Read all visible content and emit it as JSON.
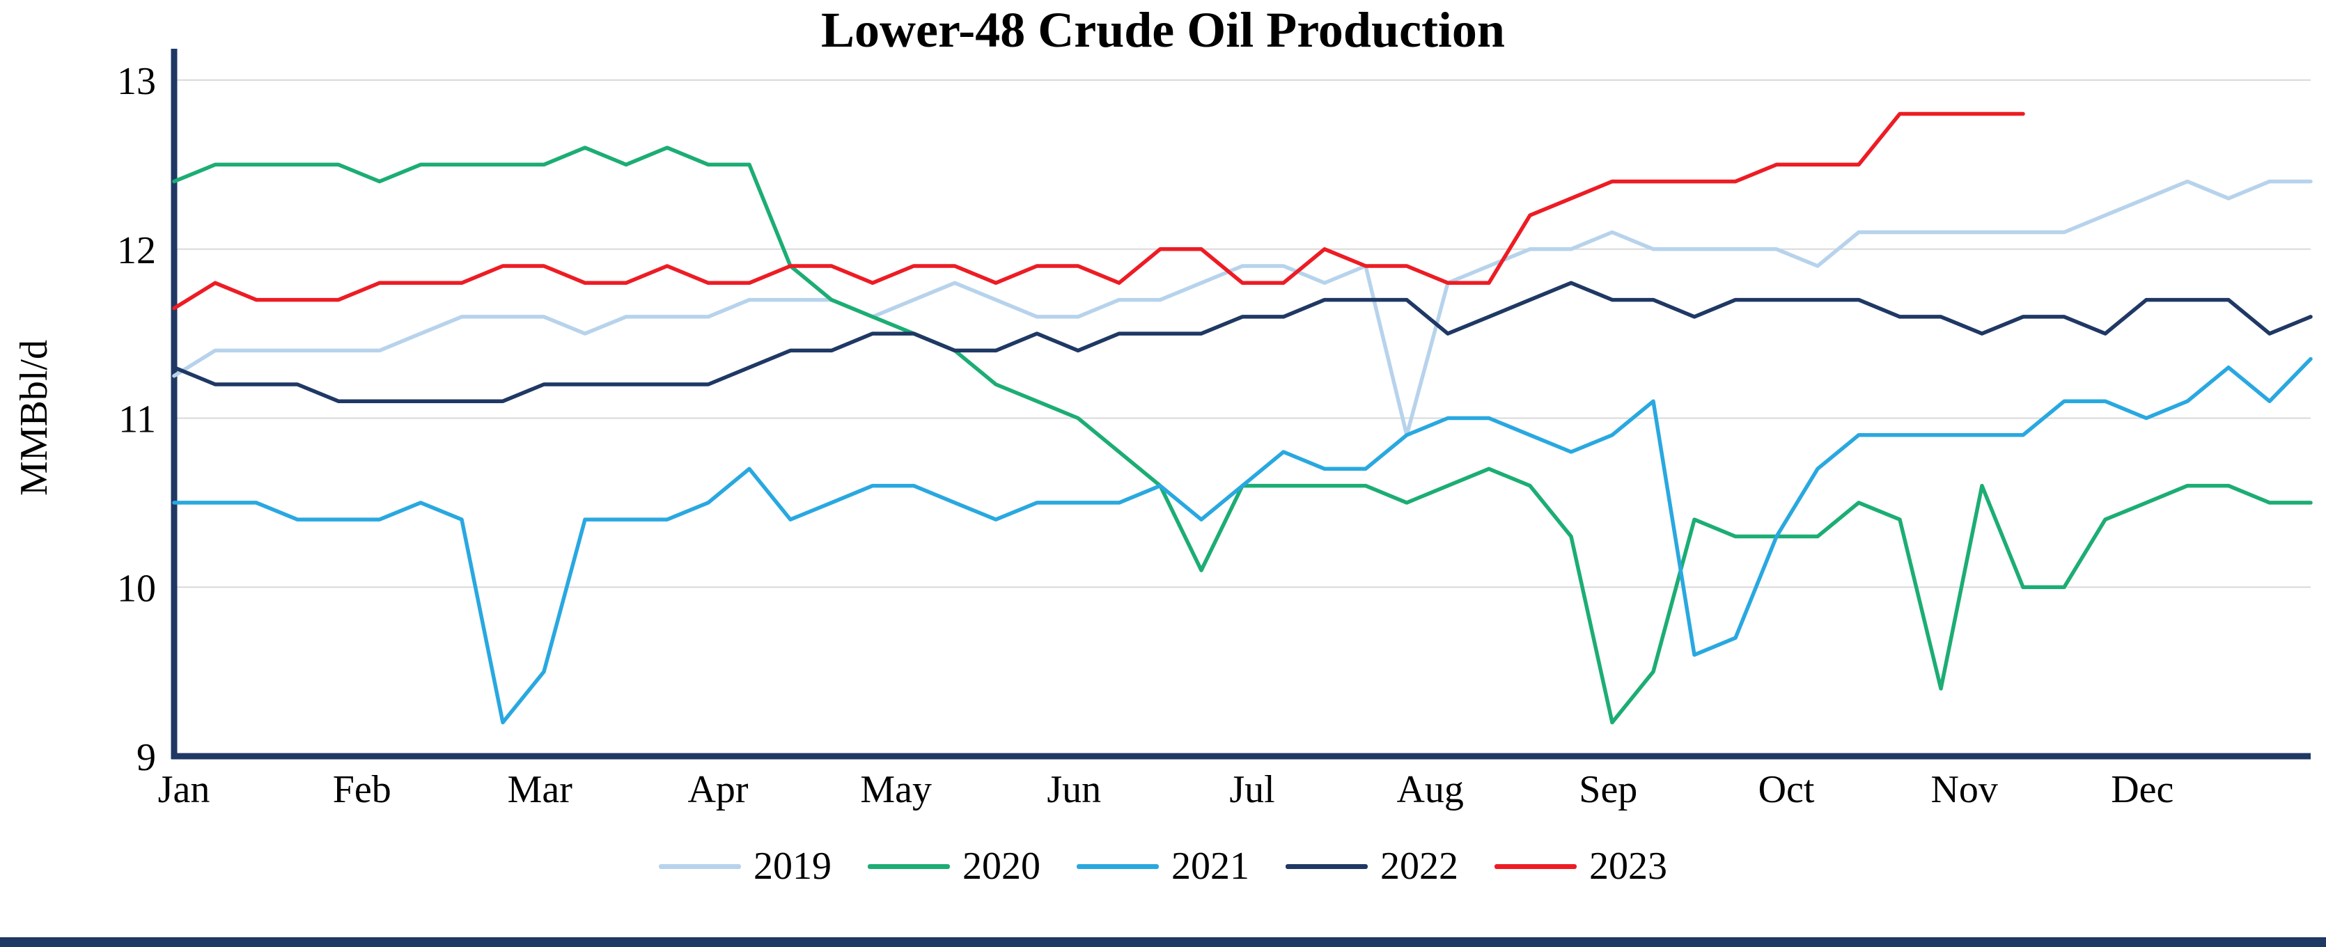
{
  "title": "Lower-48 Crude Oil Production",
  "y_axis": {
    "label": "MMBbl/d",
    "ticks": [
      "9",
      "10",
      "11",
      "12",
      "13"
    ]
  },
  "x_axis": {
    "months": [
      "Jan",
      "Feb",
      "Mar",
      "Apr",
      "May",
      "Jun",
      "Jul",
      "Aug",
      "Sep",
      "Oct",
      "Nov",
      "Dec"
    ]
  },
  "colors": {
    "axis": "#1f3864",
    "grid": "#d9d9d9",
    "bottom_bar": "#1f3864"
  },
  "chart_data": {
    "type": "line",
    "title": "Lower-48 Crude Oil Production",
    "xlabel": "",
    "ylabel": "MMBbl/d",
    "ylim": [
      9,
      13
    ],
    "grid": "horizontal",
    "legend_position": "bottom",
    "x_unit": "weekly points, 12-month span (Jan-Dec)",
    "x_months": [
      "Jan",
      "Feb",
      "Mar",
      "Apr",
      "May",
      "Jun",
      "Jul",
      "Aug",
      "Sep",
      "Oct",
      "Nov",
      "Dec"
    ],
    "y_ticks": [
      "9",
      "10",
      "11",
      "12",
      "13"
    ],
    "axis_color": "#1f3864",
    "grid_color": "#d9d9d9",
    "series": [
      {
        "name": "2019",
        "color": "#b7d3ec",
        "values": [
          11.25,
          11.4,
          11.4,
          11.4,
          11.4,
          11.4,
          11.5,
          11.6,
          11.6,
          11.6,
          11.5,
          11.6,
          11.6,
          11.6,
          11.7,
          11.7,
          11.7,
          11.6,
          11.7,
          11.8,
          11.7,
          11.6,
          11.6,
          11.7,
          11.7,
          11.8,
          11.9,
          11.9,
          11.8,
          11.9,
          10.9,
          11.8,
          11.9,
          12.0,
          12.0,
          12.1,
          12.0,
          12.0,
          12.0,
          12.0,
          11.9,
          12.1,
          12.1,
          12.1,
          12.1,
          12.1,
          12.1,
          12.2,
          12.3,
          12.4,
          12.3,
          12.4,
          12.4
        ]
      },
      {
        "name": "2020",
        "color": "#1cad74",
        "values": [
          12.4,
          12.5,
          12.5,
          12.5,
          12.5,
          12.4,
          12.5,
          12.5,
          12.5,
          12.5,
          12.6,
          12.5,
          12.6,
          12.5,
          12.5,
          11.9,
          11.7,
          11.6,
          11.5,
          11.4,
          11.2,
          11.1,
          11.0,
          10.8,
          10.6,
          10.1,
          10.6,
          10.6,
          10.6,
          10.6,
          10.5,
          10.6,
          10.7,
          10.6,
          10.3,
          9.2,
          9.5,
          10.4,
          10.3,
          10.3,
          10.3,
          10.5,
          10.4,
          9.4,
          10.6,
          10.0,
          10.0,
          10.4,
          10.5,
          10.6,
          10.6,
          10.5,
          10.5
        ]
      },
      {
        "name": "2021",
        "color": "#29a8e0",
        "values": [
          10.5,
          10.5,
          10.5,
          10.4,
          10.4,
          10.4,
          10.5,
          10.4,
          9.2,
          9.5,
          10.4,
          10.4,
          10.4,
          10.5,
          10.7,
          10.4,
          10.5,
          10.6,
          10.6,
          10.5,
          10.4,
          10.5,
          10.5,
          10.5,
          10.6,
          10.4,
          10.6,
          10.8,
          10.7,
          10.7,
          10.9,
          11.0,
          11.0,
          10.9,
          10.8,
          10.9,
          11.1,
          9.6,
          9.7,
          10.3,
          10.7,
          10.9,
          10.9,
          10.9,
          10.9,
          10.9,
          11.1,
          11.1,
          11.0,
          11.1,
          11.3,
          11.1,
          11.35
        ]
      },
      {
        "name": "2022",
        "color": "#1f3864",
        "values": [
          11.3,
          11.2,
          11.2,
          11.2,
          11.1,
          11.1,
          11.1,
          11.1,
          11.1,
          11.2,
          11.2,
          11.2,
          11.2,
          11.2,
          11.3,
          11.4,
          11.4,
          11.5,
          11.5,
          11.4,
          11.4,
          11.5,
          11.4,
          11.5,
          11.5,
          11.5,
          11.6,
          11.6,
          11.7,
          11.7,
          11.7,
          11.5,
          11.6,
          11.7,
          11.8,
          11.7,
          11.7,
          11.6,
          11.7,
          11.7,
          11.7,
          11.7,
          11.6,
          11.6,
          11.5,
          11.6,
          11.6,
          11.5,
          11.7,
          11.7,
          11.7,
          11.5,
          11.6
        ]
      },
      {
        "name": "2023",
        "color": "#ed1c24",
        "values": [
          11.65,
          11.8,
          11.7,
          11.7,
          11.7,
          11.8,
          11.8,
          11.8,
          11.9,
          11.9,
          11.8,
          11.8,
          11.9,
          11.8,
          11.8,
          11.9,
          11.9,
          11.8,
          11.9,
          11.9,
          11.8,
          11.9,
          11.9,
          11.8,
          12.0,
          12.0,
          11.8,
          11.8,
          12.0,
          11.9,
          11.9,
          11.8,
          11.8,
          12.2,
          12.3,
          12.4,
          12.4,
          12.4,
          12.4,
          12.5,
          12.5,
          12.5,
          12.8,
          12.8,
          12.8,
          12.8
        ]
      }
    ]
  }
}
